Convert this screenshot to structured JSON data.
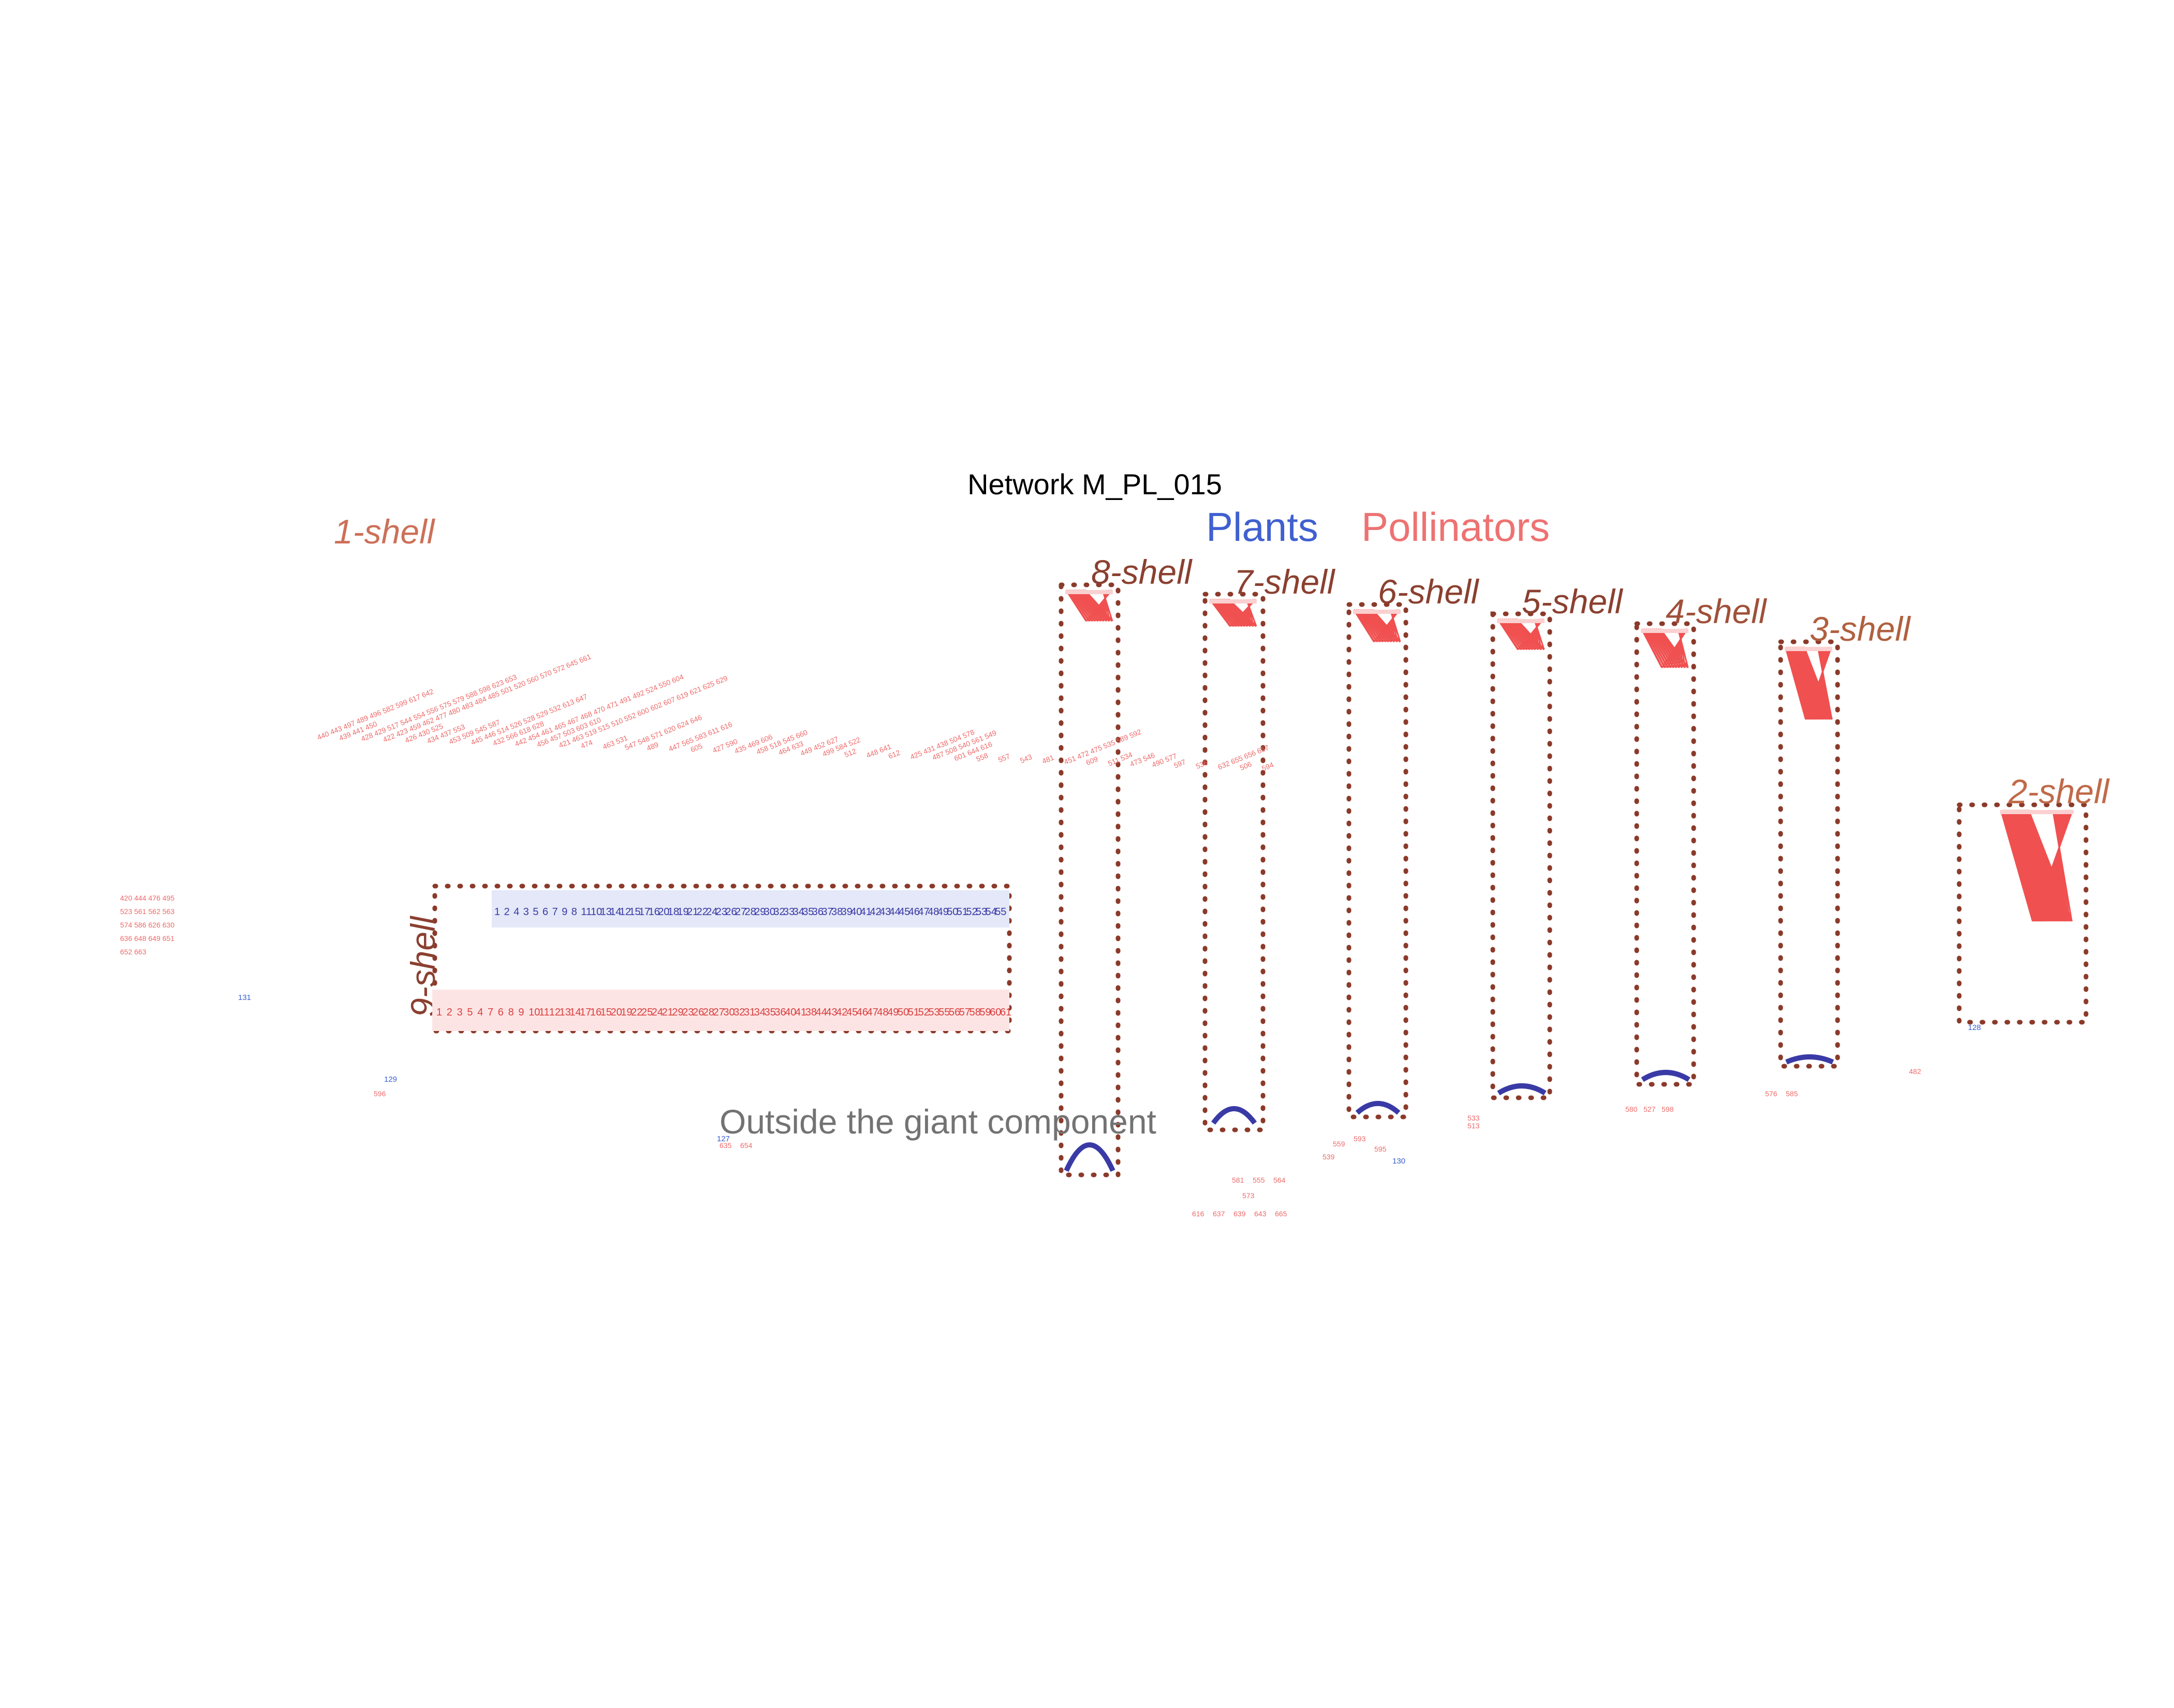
{
  "title": "Network M_PL_015",
  "legend": {
    "plants": "Plants",
    "pollinators": "Pollinators"
  },
  "colors": {
    "plants": "#4060d0",
    "pollinators": "#ee7272",
    "shell_label": "#8b4030",
    "box": "#8b3a2a",
    "links": "#f05050",
    "plant_links": "#3a3aa6"
  },
  "outside_label": "Outside the giant component",
  "shells": [
    {
      "id": "9",
      "label": "9-shell"
    },
    {
      "id": "8",
      "label": "8-shell"
    },
    {
      "id": "7",
      "label": "7-shell"
    },
    {
      "id": "6",
      "label": "6-shell"
    },
    {
      "id": "5",
      "label": "5-shell"
    },
    {
      "id": "4",
      "label": "4-shell"
    },
    {
      "id": "3",
      "label": "3-shell"
    },
    {
      "id": "2",
      "label": "2-shell"
    },
    {
      "id": "1",
      "label": "1-shell"
    }
  ],
  "shell9": {
    "plants": [
      "1",
      "2",
      "4",
      "3",
      "5",
      "6",
      "7",
      "9",
      "8",
      "11",
      "10",
      "13",
      "14",
      "12",
      "15",
      "17",
      "16",
      "20",
      "18",
      "19",
      "21",
      "22",
      "24",
      "23",
      "26",
      "27",
      "28",
      "29",
      "30",
      "32",
      "33",
      "34",
      "35",
      "36",
      "37",
      "38",
      "39",
      "40",
      "41",
      "42",
      "43",
      "44",
      "45",
      "46",
      "47",
      "48",
      "49",
      "50",
      "51",
      "52",
      "53",
      "54",
      "55"
    ],
    "pollinators": [
      "1",
      "2",
      "3",
      "5",
      "4",
      "7",
      "6",
      "8",
      "9",
      "10",
      "11",
      "12",
      "13",
      "14",
      "17",
      "16",
      "15",
      "20",
      "19",
      "22",
      "25",
      "24",
      "21",
      "29",
      "23",
      "26",
      "28",
      "27",
      "30",
      "32",
      "31",
      "34",
      "35",
      "36",
      "40",
      "41",
      "38",
      "44",
      "43",
      "42",
      "45",
      "46",
      "47",
      "48",
      "49",
      "50",
      "51",
      "52",
      "53",
      "55",
      "56",
      "57",
      "58",
      "59",
      "60",
      "61"
    ]
  },
  "shell1_left_block": [
    "420 444 476 495",
    "523 561 562 563",
    "574 586 626 630",
    "636 648 649 651",
    "652 663"
  ],
  "shell1_diagonal_rows": [
    "440 443 497 489 496 582 599 617 642",
    "439 441 450",
    "428 429 517 544 554 556 575 579 588 598 623 653",
    "422 423 459 462 477 480 483 484 485 501 520 560 570 572 645 661",
    "426 430 525",
    "434 437 553",
    "453 509 545 587",
    "445 446 514 526 528 529 532 613 647",
    "432 566 618 628",
    "442 454 461 465 467 468 470 471 491 492 524 550 604",
    "456 457 503 603 610",
    "421 463 519 515 510 552 600 602 607 619 621 625 629",
    "474",
    "463 531",
    "547 548 571 620 624 646",
    "489",
    "447 565 583 611 616",
    "605",
    "427 590",
    "435 469 606",
    "458 518 545 660",
    "464 633",
    "449 452 627",
    "499 584 522",
    "512",
    "448 641",
    "612",
    "425 431 438 504 578",
    "487 508 540 561 549",
    "601 644 616",
    "558",
    "557",
    "543",
    "481",
    "451 472 475 535 589 592",
    "609",
    "511 534",
    "473 546",
    "490 577",
    "597",
    "536",
    "632 655 656 657",
    "506",
    "594"
  ],
  "outside_nodes": {
    "plants": [
      "131",
      "129",
      "127",
      "130",
      "128"
    ],
    "pollinators": [
      "596",
      "482",
      "580",
      "527",
      "598",
      "576",
      "585",
      "616",
      "637",
      "639",
      "643",
      "665",
      "573",
      "564",
      "555",
      "581",
      "595",
      "593",
      "559",
      "533",
      "539",
      "513",
      "635",
      "654"
    ]
  }
}
